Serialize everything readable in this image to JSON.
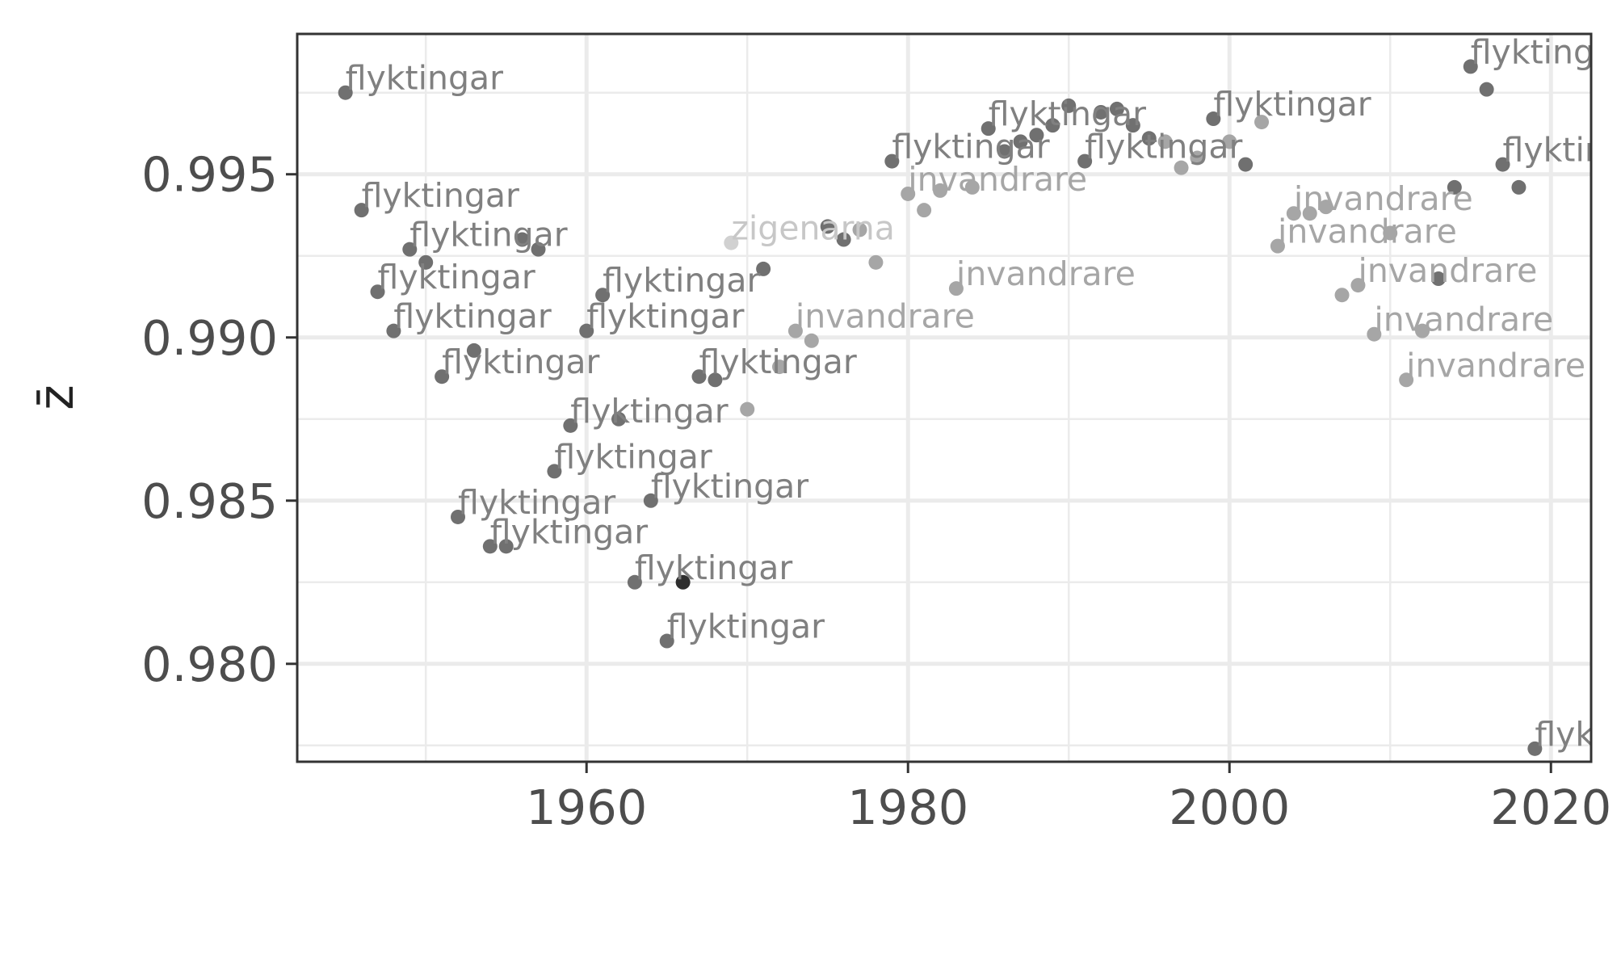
{
  "chart_data": {
    "type": "scatter",
    "title": "",
    "xlabel": "",
    "ylabel": "z̄",
    "xlim": [
      1942,
      2022.5
    ],
    "ylim": [
      0.977,
      0.9993
    ],
    "xticks": [
      1960,
      1980,
      2000,
      2020
    ],
    "xtick_labels": [
      "1960",
      "1980",
      "2000",
      "2020"
    ],
    "yticks": [
      0.98,
      0.985,
      0.99,
      0.995
    ],
    "ytick_labels": [
      "0.980",
      "0.985",
      "0.990",
      "0.995"
    ],
    "grid": true,
    "legend": "none",
    "colors": {
      "background": "#ffffff",
      "grid": "#ebebeb",
      "border": "#333333",
      "dark_point": "#707070",
      "label_dark": "#808080",
      "label_light": "#a6a6a6",
      "label_lightest": "#c7c7c7"
    },
    "points": [
      {
        "x": 1945,
        "y": 0.9975,
        "label": "flyktingar",
        "color": "#707070",
        "label_color": "#808080"
      },
      {
        "x": 1946,
        "y": 0.9939,
        "label": "flyktingar",
        "color": "#707070",
        "label_color": "#808080"
      },
      {
        "x": 1947,
        "y": 0.9914,
        "label": "flyktingar",
        "color": "#707070",
        "label_color": "#808080"
      },
      {
        "x": 1948,
        "y": 0.9902,
        "label": "flyktingar",
        "color": "#707070",
        "label_color": "#808080"
      },
      {
        "x": 1949,
        "y": 0.9927,
        "label": "flyktingar",
        "color": "#707070",
        "label_color": "#808080"
      },
      {
        "x": 1950,
        "y": 0.9923,
        "label": "",
        "color": "#707070"
      },
      {
        "x": 1951,
        "y": 0.9888,
        "label": "flyktingar",
        "color": "#707070",
        "label_color": "#808080"
      },
      {
        "x": 1952,
        "y": 0.9845,
        "label": "flyktingar",
        "color": "#707070",
        "label_color": "#808080"
      },
      {
        "x": 1953,
        "y": 0.9896,
        "label": "",
        "color": "#707070"
      },
      {
        "x": 1954,
        "y": 0.9836,
        "label": "flyktingar",
        "color": "#707070",
        "label_color": "#808080"
      },
      {
        "x": 1955,
        "y": 0.9836,
        "label": "",
        "color": "#707070"
      },
      {
        "x": 1956,
        "y": 0.993,
        "label": "",
        "color": "#707070"
      },
      {
        "x": 1957,
        "y": 0.9927,
        "label": "",
        "color": "#707070"
      },
      {
        "x": 1958,
        "y": 0.9859,
        "label": "flyktingar",
        "color": "#707070",
        "label_color": "#808080"
      },
      {
        "x": 1959,
        "y": 0.9873,
        "label": "flyktingar",
        "color": "#707070",
        "label_color": "#808080"
      },
      {
        "x": 1960,
        "y": 0.9902,
        "label": "flyktingar",
        "color": "#707070",
        "label_color": "#808080"
      },
      {
        "x": 1961,
        "y": 0.9913,
        "label": "flyktingar",
        "color": "#707070",
        "label_color": "#808080"
      },
      {
        "x": 1962,
        "y": 0.9875,
        "label": "",
        "color": "#707070"
      },
      {
        "x": 1963,
        "y": 0.9825,
        "label": "flyktingar",
        "color": "#707070",
        "label_color": "#808080"
      },
      {
        "x": 1964,
        "y": 0.985,
        "label": "flyktingar",
        "color": "#707070",
        "label_color": "#808080"
      },
      {
        "x": 1965,
        "y": 0.9807,
        "label": "flyktingar",
        "color": "#707070",
        "label_color": "#808080"
      },
      {
        "x": 1966,
        "y": 0.9825,
        "label": "",
        "color": "#2e2e2e"
      },
      {
        "x": 1967,
        "y": 0.9888,
        "label": "flyktingar",
        "color": "#707070",
        "label_color": "#808080"
      },
      {
        "x": 1968,
        "y": 0.9887,
        "label": "",
        "color": "#707070"
      },
      {
        "x": 1969,
        "y": 0.9929,
        "label": "zigenarna",
        "color": "#d1d1d1",
        "label_color": "#c7c7c7"
      },
      {
        "x": 1970,
        "y": 0.9878,
        "label": "",
        "color": "#a6a6a6"
      },
      {
        "x": 1971,
        "y": 0.9921,
        "label": "",
        "color": "#707070"
      },
      {
        "x": 1972,
        "y": 0.9891,
        "label": "",
        "color": "#a6a6a6"
      },
      {
        "x": 1973,
        "y": 0.9902,
        "label": "invandrare",
        "color": "#a6a6a6",
        "label_color": "#a6a6a6"
      },
      {
        "x": 1974,
        "y": 0.9899,
        "label": "",
        "color": "#a6a6a6"
      },
      {
        "x": 1975,
        "y": 0.9934,
        "label": "",
        "color": "#707070"
      },
      {
        "x": 1976,
        "y": 0.993,
        "label": "",
        "color": "#707070"
      },
      {
        "x": 1977,
        "y": 0.9933,
        "label": "",
        "color": "#a6a6a6"
      },
      {
        "x": 1978,
        "y": 0.9923,
        "label": "",
        "color": "#a6a6a6"
      },
      {
        "x": 1979,
        "y": 0.9954,
        "label": "flyktingar",
        "color": "#707070",
        "label_color": "#808080"
      },
      {
        "x": 1980,
        "y": 0.9944,
        "label": "invandrare",
        "color": "#a6a6a6",
        "label_color": "#a6a6a6"
      },
      {
        "x": 1981,
        "y": 0.9939,
        "label": "",
        "color": "#a6a6a6"
      },
      {
        "x": 1982,
        "y": 0.9945,
        "label": "",
        "color": "#a6a6a6"
      },
      {
        "x": 1983,
        "y": 0.9915,
        "label": "invandrare",
        "color": "#a6a6a6",
        "label_color": "#a6a6a6"
      },
      {
        "x": 1984,
        "y": 0.9946,
        "label": "",
        "color": "#a6a6a6"
      },
      {
        "x": 1985,
        "y": 0.9964,
        "label": "flyktingar",
        "color": "#707070",
        "label_color": "#808080"
      },
      {
        "x": 1986,
        "y": 0.9957,
        "label": "",
        "color": "#707070"
      },
      {
        "x": 1987,
        "y": 0.996,
        "label": "",
        "color": "#707070"
      },
      {
        "x": 1988,
        "y": 0.9962,
        "label": "",
        "color": "#707070"
      },
      {
        "x": 1989,
        "y": 0.9965,
        "label": "",
        "color": "#707070"
      },
      {
        "x": 1990,
        "y": 0.9971,
        "label": "",
        "color": "#707070"
      },
      {
        "x": 1991,
        "y": 0.9954,
        "label": "flyktingar",
        "color": "#707070",
        "label_color": "#808080"
      },
      {
        "x": 1992,
        "y": 0.9969,
        "label": "",
        "color": "#707070"
      },
      {
        "x": 1993,
        "y": 0.997,
        "label": "",
        "color": "#707070"
      },
      {
        "x": 1994,
        "y": 0.9965,
        "label": "",
        "color": "#707070"
      },
      {
        "x": 1995,
        "y": 0.9961,
        "label": "",
        "color": "#707070"
      },
      {
        "x": 1996,
        "y": 0.996,
        "label": "",
        "color": "#a6a6a6"
      },
      {
        "x": 1997,
        "y": 0.9952,
        "label": "",
        "color": "#a6a6a6"
      },
      {
        "x": 1998,
        "y": 0.9955,
        "label": "",
        "color": "#a6a6a6"
      },
      {
        "x": 1999,
        "y": 0.9967,
        "label": "flyktingar",
        "color": "#707070",
        "label_color": "#808080"
      },
      {
        "x": 2000,
        "y": 0.996,
        "label": "",
        "color": "#a6a6a6"
      },
      {
        "x": 2001,
        "y": 0.9953,
        "label": "",
        "color": "#707070"
      },
      {
        "x": 2002,
        "y": 0.9966,
        "label": "",
        "color": "#a6a6a6"
      },
      {
        "x": 2003,
        "y": 0.9928,
        "label": "invandrare",
        "color": "#a6a6a6",
        "label_color": "#a6a6a6"
      },
      {
        "x": 2004,
        "y": 0.9938,
        "label": "invandrare",
        "color": "#a6a6a6",
        "label_color": "#a6a6a6"
      },
      {
        "x": 2005,
        "y": 0.9938,
        "label": "",
        "color": "#a6a6a6"
      },
      {
        "x": 2006,
        "y": 0.994,
        "label": "",
        "color": "#a6a6a6"
      },
      {
        "x": 2007,
        "y": 0.9913,
        "label": "",
        "color": "#a6a6a6"
      },
      {
        "x": 2008,
        "y": 0.9916,
        "label": "invandrare",
        "color": "#a6a6a6",
        "label_color": "#a6a6a6"
      },
      {
        "x": 2009,
        "y": 0.9901,
        "label": "invandrare",
        "color": "#a6a6a6",
        "label_color": "#a6a6a6"
      },
      {
        "x": 2010,
        "y": 0.9932,
        "label": "",
        "color": "#a6a6a6"
      },
      {
        "x": 2011,
        "y": 0.9887,
        "label": "invandrare",
        "color": "#a6a6a6",
        "label_color": "#a6a6a6"
      },
      {
        "x": 2012,
        "y": 0.9902,
        "label": "",
        "color": "#a6a6a6"
      },
      {
        "x": 2013,
        "y": 0.9918,
        "label": "",
        "color": "#707070"
      },
      {
        "x": 2014,
        "y": 0.9946,
        "label": "",
        "color": "#707070"
      },
      {
        "x": 2015,
        "y": 0.9983,
        "label": "flyktingar",
        "color": "#707070",
        "label_color": "#808080"
      },
      {
        "x": 2016,
        "y": 0.9976,
        "label": "",
        "color": "#707070"
      },
      {
        "x": 2017,
        "y": 0.9953,
        "label": "flyktingar",
        "color": "#707070",
        "label_color": "#808080"
      },
      {
        "x": 2018,
        "y": 0.9946,
        "label": "",
        "color": "#707070"
      },
      {
        "x": 2019,
        "y": 0.9774,
        "label": "flyktingar",
        "color": "#707070",
        "label_color": "#808080"
      }
    ]
  }
}
